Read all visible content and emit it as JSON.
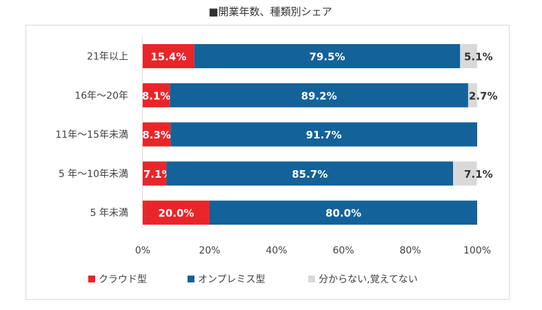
{
  "chart_data": {
    "type": "bar",
    "orientation": "horizontal",
    "stacked": true,
    "title": "■開業年数、種類別シェア",
    "categories": [
      "21年以上",
      "16年～20年",
      "11年～15年未満",
      "5 年～10年未満",
      "5 年未満"
    ],
    "series": [
      {
        "name": "クラウド型",
        "color": "#e8262a",
        "values": [
          15.4,
          8.1,
          8.3,
          7.1,
          20.0
        ],
        "labels": [
          "15.4%",
          "8.1%",
          "8.3%",
          "7.1%",
          "20.0%"
        ]
      },
      {
        "name": "オンプレミス型",
        "color": "#136299",
        "values": [
          79.5,
          89.2,
          91.7,
          85.7,
          80.0
        ],
        "labels": [
          "79.5%",
          "89.2%",
          "91.7%",
          "85.7%",
          "80.0%"
        ]
      },
      {
        "name": "分からない,覚えてない",
        "color": "#d9d9d9",
        "values": [
          5.1,
          2.7,
          0,
          7.1,
          0
        ],
        "labels": [
          "5.1%",
          "2.7%",
          "",
          "7.1%",
          ""
        ]
      }
    ],
    "xlim": [
      0,
      100
    ],
    "xticks": [
      "0%",
      "20%",
      "40%",
      "60%",
      "80%",
      "100%"
    ],
    "grid": false,
    "legend": "bottom"
  }
}
